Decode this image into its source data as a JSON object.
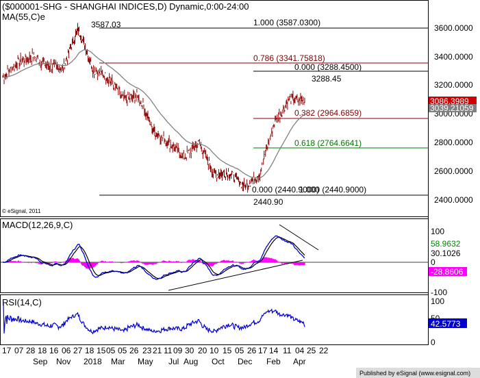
{
  "main_title": "($000001-SHG - SHANGHAI INDICES,D) Dynamic,0:00-24:00",
  "ma_label": "MA(55,C)e",
  "copyright": "© eSignal, 2011",
  "footer": "Published by eSignal (www.esignal.com)",
  "colors": {
    "price": "#8b0000",
    "ma": "#808080",
    "macd": "#0000cc",
    "signal": "#000000",
    "hist": "#ff00ff",
    "rsi": "#0000cc",
    "fib_red": "#800000",
    "fib_green": "#007700"
  },
  "annotations": {
    "high": "3587.03",
    "low": "2440.90",
    "recent_high": "3288.45"
  },
  "fib_levels": [
    {
      "label": "1.000 (3587.0300)",
      "value": 3587.03,
      "color": "black"
    },
    {
      "label": "0.786 (3341.75818)",
      "value": 3341.75818,
      "color": "red"
    },
    {
      "label": "0.000 (3288.4500)",
      "value": 3288.45,
      "color": "black"
    },
    {
      "label": "0.382 (2964.6859)",
      "value": 2964.6859,
      "color": "red"
    },
    {
      "label": "0.618 (2764.6641)",
      "value": 2764.6641,
      "color": "green"
    },
    {
      "label": "0.000 (2440.9000)",
      "value": 2440.9,
      "color": "black"
    },
    {
      "label": "1.000 (2440.9000)",
      "value": 2440.9,
      "color": "black"
    }
  ],
  "price_axis": {
    "ticks": [
      "3600.0000",
      "3400.0000",
      "3200.0000",
      "3000.0000",
      "2800.0000",
      "2600.0000",
      "2400.0000"
    ],
    "ylim": [
      2360,
      3720
    ]
  },
  "current": {
    "price": "3086.3989",
    "ma": "3039.21059"
  },
  "macd": {
    "label": "MACD(12,26,9,C)",
    "ticks": [
      "100",
      "0",
      "-100"
    ],
    "values": [
      "58.9632",
      "30.1026",
      "-28.8606"
    ],
    "ylim": [
      -120,
      130
    ]
  },
  "rsi": {
    "label": "RSI(14,C)",
    "ticks": [
      "100",
      "50",
      "0"
    ],
    "value": "42.5773",
    "ylim": [
      0,
      105
    ]
  },
  "x_axis": {
    "day_row": [
      "17",
      "07",
      "28",
      "18",
      "16",
      "06",
      "27",
      "18",
      "15",
      "05",
      "05",
      "26",
      "23",
      "21",
      "11",
      "09",
      "30",
      "20",
      "10",
      "15",
      "05",
      "26",
      "17",
      "14",
      "11",
      "04",
      "25",
      "22"
    ],
    "month_row": [
      "Sep",
      "Nov",
      "2018",
      "Mar",
      "May",
      "Jul",
      "Aug",
      "Oct",
      "Dec",
      "Feb",
      "Apr"
    ]
  },
  "chart_data": {
    "type": "line",
    "x_range": [
      "2017-08",
      "2019-04"
    ],
    "price_series": [
      {
        "x": "2017-08",
        "y": 3250
      },
      {
        "x": "2017-09",
        "y": 3350
      },
      {
        "x": "2017-10",
        "y": 3390
      },
      {
        "x": "2017-11",
        "y": 3330
      },
      {
        "x": "2017-12",
        "y": 3310
      },
      {
        "x": "2018-01",
        "y": 3587.03
      },
      {
        "x": "2018-02",
        "y": 3300
      },
      {
        "x": "2018-03",
        "y": 3250
      },
      {
        "x": "2018-04",
        "y": 3100
      },
      {
        "x": "2018-05",
        "y": 3120
      },
      {
        "x": "2018-06",
        "y": 2880
      },
      {
        "x": "2018-07",
        "y": 2800
      },
      {
        "x": "2018-08",
        "y": 2700
      },
      {
        "x": "2018-09",
        "y": 2800
      },
      {
        "x": "2018-10",
        "y": 2580
      },
      {
        "x": "2018-11",
        "y": 2600
      },
      {
        "x": "2018-12",
        "y": 2500
      },
      {
        "x": "2019-01",
        "y": 2580
      },
      {
        "x": "2019-02",
        "y": 2940
      },
      {
        "x": "2019-03",
        "y": 3100
      },
      {
        "x": "2019-04",
        "y": 3086.3989
      }
    ],
    "ma_last": 3039.21059,
    "macd_last": 30.1026,
    "signal_last": 58.9632,
    "hist_last": -28.8606,
    "rsi_last": 42.5773
  }
}
